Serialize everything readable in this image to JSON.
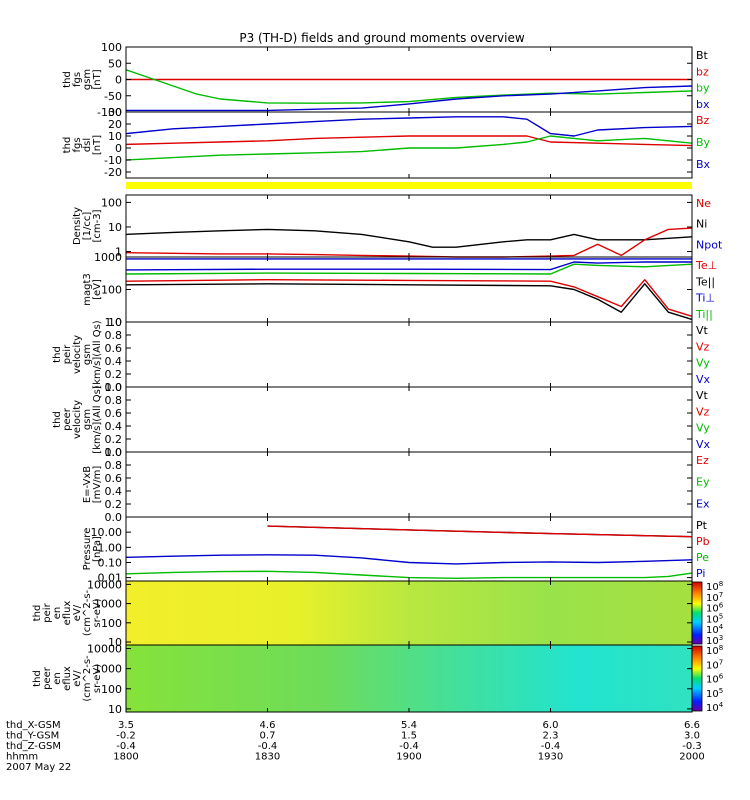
{
  "chart_data": {
    "type": "line",
    "title": "P3 (TH-D) fields and ground moments overview",
    "x_axis": {
      "time_ticks": [
        "1800",
        "1830",
        "1900",
        "1930",
        "2000"
      ],
      "ephemeris": [
        {
          "name": "thd_X-GSM",
          "values": [
            "3.5",
            "4.6",
            "5.4",
            "6.0",
            "6.6"
          ]
        },
        {
          "name": "thd_Y-GSM",
          "values": [
            "-0.2",
            "0.7",
            "1.5",
            "2.3",
            "3.0"
          ]
        },
        {
          "name": "thd_Z-GSM",
          "values": [
            "-0.4",
            "-0.4",
            "-0.4",
            "-0.4",
            "-0.3"
          ]
        },
        {
          "name": "hhmm",
          "values": [
            "1800",
            "1830",
            "1900",
            "1930",
            "2000"
          ]
        }
      ],
      "date": "2007 May 22"
    },
    "panels": [
      {
        "id": "fgs_gsm",
        "ylabel": [
          "thd",
          "fgs",
          "gsm",
          "[nT]"
        ],
        "scale": "linear",
        "ylim": [
          -100,
          100
        ],
        "ticks": [
          "100",
          "50",
          "0",
          "-50",
          "-100"
        ],
        "legend": [
          {
            "name": "Bt",
            "color": "#000000"
          },
          {
            "name": "bz",
            "color": "#dd0000"
          },
          {
            "name": "by",
            "color": "#00bb00"
          },
          {
            "name": "bx",
            "color": "#0000cc"
          }
        ],
        "series": [
          {
            "name": "bz",
            "color": "#dd0000",
            "x": [
              1800,
              1830,
              1900,
              1930,
              2000
            ],
            "y": [
              0,
              0,
              0,
              0,
              0
            ]
          },
          {
            "name": "by",
            "color": "#00bb00",
            "x": [
              1800,
              1805,
              1810,
              1815,
              1820,
              1830,
              1840,
              1850,
              1900,
              1910,
              1920,
              1930,
              1940,
              1950,
              2000
            ],
            "y": [
              30,
              5,
              -20,
              -45,
              -60,
              -72,
              -73,
              -72,
              -68,
              -55,
              -48,
              -42,
              -45,
              -40,
              -35
            ]
          },
          {
            "name": "bx",
            "color": "#0000cc",
            "x": [
              1800,
              1830,
              1850,
              1900,
              1910,
              1920,
              1930,
              1940,
              1950,
              2000
            ],
            "y": [
              -95,
              -95,
              -88,
              -75,
              -60,
              -50,
              -45,
              -35,
              -25,
              -20
            ]
          }
        ]
      },
      {
        "id": "fgs_dsl",
        "ylabel": [
          "thd",
          "fgs",
          "dsl",
          "[nT]"
        ],
        "scale": "linear",
        "ylim": [
          -25,
          30
        ],
        "ticks": [
          "30",
          "20",
          "10",
          "0",
          "-10",
          "-20"
        ],
        "legend": [
          {
            "name": "Bz",
            "color": "#dd0000"
          },
          {
            "name": "By",
            "color": "#00bb00"
          },
          {
            "name": "Bx",
            "color": "#0000cc"
          }
        ],
        "series": [
          {
            "name": "Bz",
            "color": "#dd0000",
            "x": [
              1800,
              1810,
              1820,
              1830,
              1840,
              1850,
              1900,
              1910,
              1920,
              1925,
              1930,
              1940,
              1950,
              2000
            ],
            "y": [
              3,
              4,
              5,
              6,
              8,
              9,
              10,
              10,
              10,
              10,
              5,
              4,
              3,
              2
            ]
          },
          {
            "name": "By",
            "color": "#00bb00",
            "x": [
              1800,
              1810,
              1820,
              1830,
              1840,
              1850,
              1900,
              1910,
              1920,
              1925,
              1930,
              1935,
              1940,
              1950,
              2000
            ],
            "y": [
              -10,
              -8,
              -6,
              -5,
              -4,
              -3,
              0,
              0,
              3,
              5,
              10,
              8,
              6,
              8,
              4
            ]
          },
          {
            "name": "Bx",
            "color": "#0000cc",
            "x": [
              1800,
              1810,
              1820,
              1830,
              1840,
              1850,
              1900,
              1910,
              1920,
              1925,
              1930,
              1935,
              1940,
              1950,
              2000
            ],
            "y": [
              12,
              16,
              18,
              20,
              22,
              24,
              25,
              26,
              26,
              24,
              12,
              10,
              15,
              17,
              18
            ]
          }
        ]
      },
      {
        "id": "status_bar",
        "ylabel": [],
        "color": "#ffff00"
      },
      {
        "id": "density",
        "ylabel": [
          "Density",
          "[1/cc]",
          "[cm-3]"
        ],
        "scale": "log",
        "ylim": [
          0.6,
          200
        ],
        "ticks": [
          "100",
          "10",
          "1"
        ],
        "legend": [
          {
            "name": "Ne",
            "color": "#dd0000"
          },
          {
            "name": "Ni",
            "color": "#000000"
          },
          {
            "name": "Npot",
            "color": "#0000cc"
          }
        ],
        "series": [
          {
            "name": "Ni",
            "color": "#000000",
            "x": [
              1800,
              1810,
              1820,
              1830,
              1840,
              1850,
              1900,
              1905,
              1910,
              1920,
              1925,
              1930,
              1935,
              1940,
              1950,
              2000
            ],
            "y": [
              5,
              6,
              7,
              8,
              7,
              5,
              2.5,
              1.5,
              1.5,
              2.5,
              3,
              3,
              5,
              3,
              3,
              4
            ]
          },
          {
            "name": "Ne",
            "color": "#dd0000",
            "x": [
              1800,
              1810,
              1820,
              1830,
              1840,
              1850,
              1900,
              1910,
              1920,
              1930,
              1935,
              1940,
              1945,
              1950,
              1955,
              2000
            ],
            "y": [
              0.9,
              0.85,
              0.8,
              0.8,
              0.75,
              0.7,
              0.65,
              0.6,
              0.6,
              0.65,
              0.7,
              2,
              0.7,
              3,
              8,
              9
            ]
          },
          {
            "name": "Npot",
            "color": "#0000cc",
            "x": [
              1800,
              2000
            ],
            "y": [
              0.5,
              0.5
            ]
          }
        ]
      },
      {
        "id": "temperature",
        "ylabel": [
          "magt3",
          "[eV]"
        ],
        "scale": "log",
        "ylim": [
          10,
          1000
        ],
        "ticks": [
          "1000",
          "100",
          "10"
        ],
        "legend": [
          {
            "name": "Te⊥",
            "color": "#dd0000"
          },
          {
            "name": "Te||",
            "color": "#000000"
          },
          {
            "name": "Ti⊥",
            "color": "#0000cc"
          },
          {
            "name": "Ti||",
            "color": "#00bb00"
          }
        ],
        "series": [
          {
            "name": "Ti⊥",
            "color": "#0000cc",
            "x": [
              1800,
              1830,
              1900,
              1930,
              1935,
              1940,
              1950,
              2000
            ],
            "y": [
              400,
              420,
              420,
              410,
              700,
              650,
              700,
              700
            ]
          },
          {
            "name": "Ti||",
            "color": "#00bb00",
            "x": [
              1800,
              1830,
              1900,
              1930,
              1935,
              1940,
              1950,
              2000
            ],
            "y": [
              300,
              320,
              310,
              300,
              600,
              550,
              500,
              600
            ]
          },
          {
            "name": "Te⊥",
            "color": "#dd0000",
            "x": [
              1800,
              1830,
              1900,
              1930,
              1935,
              1940,
              1945,
              1950,
              1955,
              2000
            ],
            "y": [
              180,
              200,
              190,
              180,
              120,
              60,
              30,
              200,
              25,
              15
            ]
          },
          {
            "name": "Te||",
            "color": "#000000",
            "x": [
              1800,
              1830,
              1900,
              1930,
              1935,
              1940,
              1945,
              1950,
              1955,
              2000
            ],
            "y": [
              140,
              150,
              140,
              130,
              100,
              50,
              20,
              150,
              20,
              12
            ]
          }
        ]
      },
      {
        "id": "peir_velocity",
        "ylabel": [
          "thd",
          "peir",
          "velocity",
          "gsm",
          "[km/s](All Qs)"
        ],
        "scale": "linear",
        "ylim": [
          0,
          1
        ],
        "ticks": [
          "1.0",
          "0.8",
          "0.6",
          "0.4",
          "0.2",
          "0.0"
        ],
        "legend": [
          {
            "name": "Vt",
            "color": "#000000"
          },
          {
            "name": "Vz",
            "color": "#dd0000"
          },
          {
            "name": "Vy",
            "color": "#00bb00"
          },
          {
            "name": "Vx",
            "color": "#0000cc"
          }
        ],
        "series": []
      },
      {
        "id": "peer_velocity",
        "ylabel": [
          "thd",
          "peer",
          "velocity",
          "gsm",
          "[km/s](All Qs)"
        ],
        "scale": "linear",
        "ylim": [
          0,
          1
        ],
        "ticks": [
          "1.0",
          "0.8",
          "0.6",
          "0.4",
          "0.2",
          "0.0"
        ],
        "legend": [
          {
            "name": "Vt",
            "color": "#000000"
          },
          {
            "name": "Vz",
            "color": "#dd0000"
          },
          {
            "name": "Vy",
            "color": "#00bb00"
          },
          {
            "name": "Vx",
            "color": "#0000cc"
          }
        ],
        "series": []
      },
      {
        "id": "efield",
        "ylabel": [
          "E=-VxB",
          "[mV/m]"
        ],
        "scale": "linear",
        "ylim": [
          0,
          1
        ],
        "ticks": [
          "1.0",
          "0.8",
          "0.6",
          "0.4",
          "0.2",
          "0.0"
        ],
        "legend": [
          {
            "name": "Ez",
            "color": "#dd0000"
          },
          {
            "name": "Ey",
            "color": "#00bb00"
          },
          {
            "name": "Ex",
            "color": "#0000cc"
          }
        ],
        "series": []
      },
      {
        "id": "pressure",
        "ylabel": [
          "Pressure",
          "[nPa]"
        ],
        "scale": "log",
        "ylim": [
          0.006,
          100
        ],
        "ticks": [
          "10.00",
          "1.00",
          "0.10",
          "0.01"
        ],
        "legend": [
          {
            "name": "Pt",
            "color": "#000000"
          },
          {
            "name": "Pb",
            "color": "#dd0000"
          },
          {
            "name": "Pe",
            "color": "#00bb00"
          },
          {
            "name": "Pi",
            "color": "#0000cc"
          }
        ],
        "series": [
          {
            "name": "Pt",
            "color": "#000000",
            "x": [
              1830,
              1900,
              1930,
              2000
            ],
            "y": [
              25,
              14,
              8,
              5
            ]
          },
          {
            "name": "Pb",
            "color": "#dd0000",
            "x": [
              1830,
              1900,
              1930,
              2000
            ],
            "y": [
              25,
              14,
              8,
              5
            ]
          },
          {
            "name": "Pi",
            "color": "#0000cc",
            "x": [
              1800,
              1810,
              1820,
              1830,
              1840,
              1850,
              1900,
              1910,
              1920,
              1930,
              1940,
              1950,
              2000
            ],
            "y": [
              0.22,
              0.26,
              0.3,
              0.32,
              0.3,
              0.2,
              0.1,
              0.08,
              0.1,
              0.11,
              0.1,
              0.12,
              0.15
            ]
          },
          {
            "name": "Pe",
            "color": "#00bb00",
            "x": [
              1800,
              1810,
              1820,
              1830,
              1840,
              1850,
              1900,
              1910,
              1920,
              1930,
              1940,
              1950,
              1955,
              2000
            ],
            "y": [
              0.018,
              0.022,
              0.025,
              0.026,
              0.022,
              0.015,
              0.01,
              0.009,
              0.01,
              0.01,
              0.01,
              0.01,
              0.012,
              0.02
            ]
          }
        ]
      },
      {
        "id": "peir_eflux",
        "type": "heatmap",
        "ylabel": [
          "thd",
          "peir",
          "en",
          "eflux",
          "eV/",
          "(cm^2-s-",
          "sr-eV)"
        ],
        "scale": "log",
        "ylim": [
          7,
          15000
        ],
        "ticks": [
          "10000",
          "1000",
          "100",
          "10"
        ],
        "colorbar": {
          "labels": [
            "10^8",
            "10^7",
            "10^6",
            "10^5",
            "10^4",
            "10^3"
          ]
        }
      },
      {
        "id": "peer_eflux",
        "type": "heatmap",
        "ylabel": [
          "thd",
          "peer",
          "en",
          "eflux",
          "eV/",
          "(cm^2-s-",
          "sr-eV)"
        ],
        "scale": "log",
        "ylim": [
          7,
          15000
        ],
        "ticks": [
          "10000",
          "1000",
          "100",
          "10"
        ],
        "colorbar": {
          "labels": [
            "10^8",
            "10^7",
            "10^6",
            "10^5",
            "10^4"
          ]
        }
      }
    ]
  }
}
